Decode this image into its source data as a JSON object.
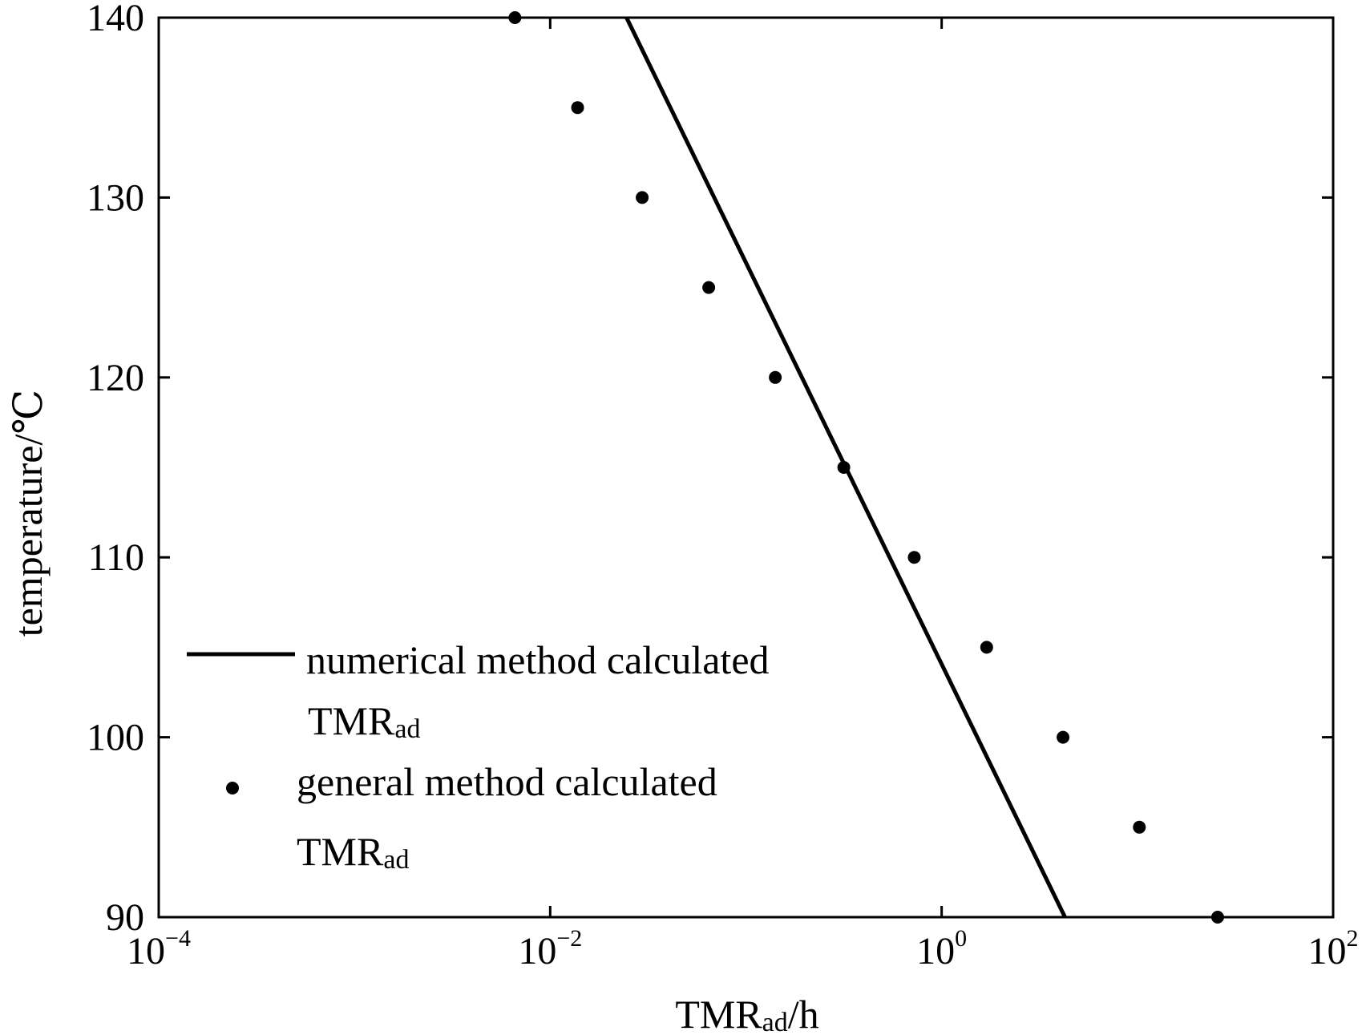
{
  "chart_data": {
    "type": "line",
    "xscale": "log",
    "xlim_exp": [
      -4,
      2
    ],
    "ylim": [
      90,
      140
    ],
    "xticks": [
      {
        "exp": -4,
        "base": "10",
        "power": "−4"
      },
      {
        "exp": -2,
        "base": "10",
        "power": "−2"
      },
      {
        "exp": 0,
        "base": "10",
        "power": "0"
      },
      {
        "exp": 2,
        "base": "10",
        "power": "2"
      }
    ],
    "yticks": [
      {
        "value": 90,
        "label": "90"
      },
      {
        "value": 100,
        "label": "100"
      },
      {
        "value": 110,
        "label": "110"
      },
      {
        "value": 120,
        "label": "120"
      },
      {
        "value": 130,
        "label": "130"
      },
      {
        "value": 140,
        "label": "140"
      }
    ],
    "xlabel": {
      "main": "TMR",
      "sub": "ad",
      "suffix": "/h"
    },
    "ylabel": "temperature/℃",
    "series": [
      {
        "name": "numerical method calculated TMRad",
        "kind": "line",
        "points": [
          {
            "x_exp": -1.61,
            "y": 140
          },
          {
            "x_exp": 0.63,
            "y": 90
          }
        ]
      },
      {
        "name": "general method calculated TMRad",
        "kind": "scatter",
        "points": [
          {
            "x_exp": -2.18,
            "y": 140
          },
          {
            "x_exp": -1.86,
            "y": 135
          },
          {
            "x_exp": -1.53,
            "y": 130
          },
          {
            "x_exp": -1.19,
            "y": 125
          },
          {
            "x_exp": -0.85,
            "y": 120
          },
          {
            "x_exp": -0.5,
            "y": 115
          },
          {
            "x_exp": -0.14,
            "y": 110
          },
          {
            "x_exp": 0.23,
            "y": 105
          },
          {
            "x_exp": 0.62,
            "y": 100
          },
          {
            "x_exp": 1.01,
            "y": 95
          },
          {
            "x_exp": 1.41,
            "y": 90
          }
        ]
      }
    ],
    "legend": {
      "placement": "bottom-left",
      "entries": [
        {
          "line1": "numerical method calculated",
          "main": "TMR",
          "sub": "ad",
          "marker": "line"
        },
        {
          "line1": "general method calculated",
          "main": "TMR",
          "sub": "ad",
          "marker": "dot"
        }
      ]
    }
  }
}
